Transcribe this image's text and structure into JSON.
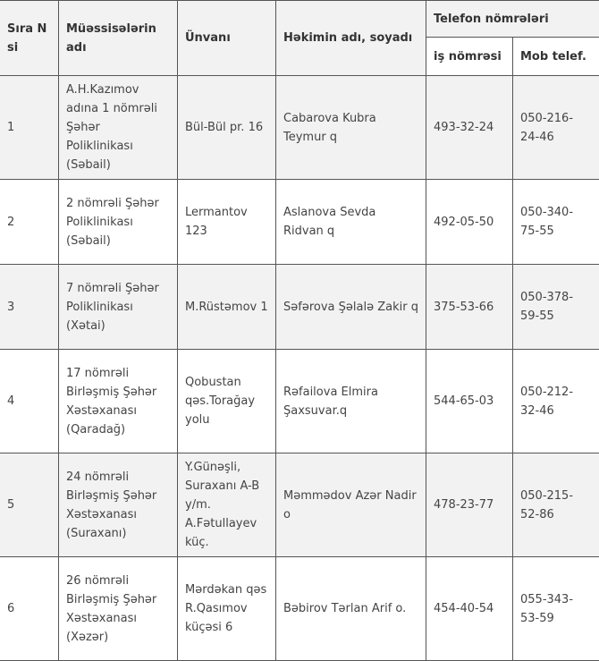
{
  "table": {
    "headers": {
      "num": "Sıra N si",
      "institution": "Müəssisələrin adı",
      "address": "Ünvanı",
      "doctor": "Həkimin adı, soyadı",
      "phones": "Telefon nömrələri",
      "work_phone": "iş nömrəsi",
      "mobile": "Mob telef."
    },
    "rows": [
      {
        "num": "1",
        "institution": "A.H.Kazımov adına 1 nömrəli Şəhər Poliklinikası (Səbail)",
        "address": "Bül-Bül pr. 16",
        "doctor": "Cabarova Kubra Teymur q",
        "work_phone": "493-32-24",
        "mobile": "050-216-24-46"
      },
      {
        "num": "2",
        "institution": "2 nömrəli Şəhər Poliklinikası (Səbail)",
        "address": "Lermantov 123",
        "doctor": "Aslanova Sevda Ridvan q",
        "work_phone": "492-05-50",
        "mobile": "050-340-75-55"
      },
      {
        "num": "3",
        "institution": "7 nömrəli Şəhər Poliklinikası (Xətai)",
        "address": "M.Rüstəmov 1",
        "doctor": "Səfərova Şəlalə Zakir q",
        "work_phone": "375-53-66",
        "mobile": "050-378-59-55"
      },
      {
        "num": "4",
        "institution": "17 nömrəli Birləşmiş Şəhər Xəstəxanası (Qaradağ)",
        "address": "Qobustan qəs.Torağay yolu",
        "doctor": "Rəfailova Elmira Şaxsuvar.q",
        "work_phone": "544-65-03",
        "mobile": "050-212-32-46"
      },
      {
        "num": "5",
        "institution": "24 nömrəli Birləşmiş Şəhər Xəstəxanası (Suraxanı)",
        "address": "Y.Günəşli, Suraxanı A-B y/m. A.Fətullayev küç.",
        "doctor": "Məmmədov Azər Nadir o",
        "work_phone": "478-23-77",
        "mobile": "050-215-52-86"
      },
      {
        "num": "6",
        "institution": "26 nömrəli Birləşmiş Şəhər Xəstəxanası (Xəzər)",
        "address": "Mərdəkan qəs R.Qasımov küçəsi 6",
        "doctor": "Bəbirov Tərlan Arif o.",
        "work_phone": "454-40-54",
        "mobile": "055-343-53-59"
      }
    ]
  }
}
